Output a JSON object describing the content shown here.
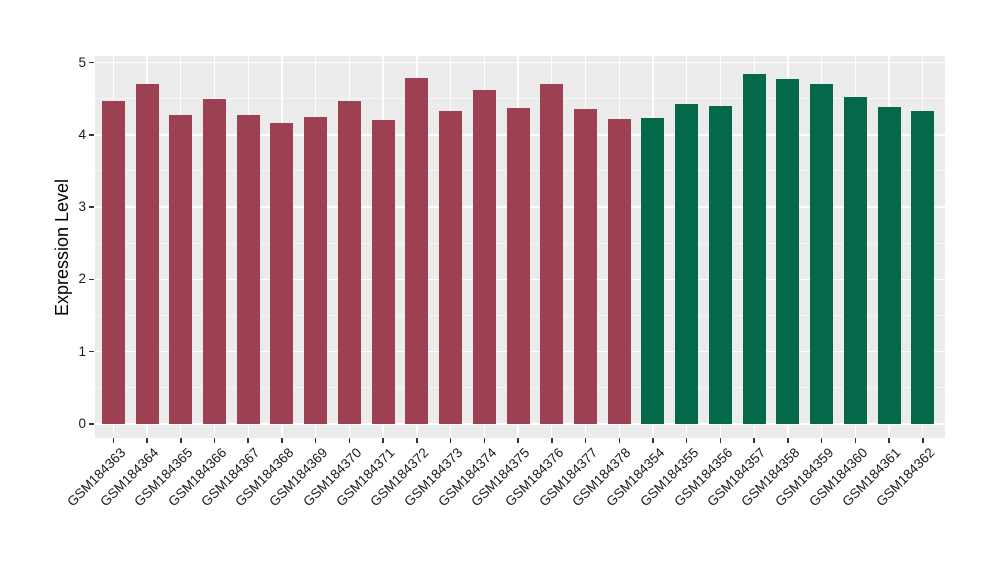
{
  "chart_data": {
    "type": "bar",
    "title": "",
    "xlabel": "",
    "ylabel": "Expression Level",
    "ylim": [
      0,
      5
    ],
    "yticks": [
      0,
      1,
      2,
      3,
      4,
      5
    ],
    "y_minor_ticks": [
      0.5,
      1.5,
      2.5,
      3.5,
      4.5
    ],
    "grid": "on",
    "legend": "none",
    "x_tick_angle": -45,
    "panel_background": "#EBEBEB",
    "grid_color": "#FFFFFF",
    "tick_mark_color": "#333333",
    "axis_text_color": "#1A1A1A",
    "group_colors": [
      "#9D4152",
      "#04684A"
    ],
    "categories": [
      "GSM184363",
      "GSM184364",
      "GSM184365",
      "GSM184366",
      "GSM184367",
      "GSM184368",
      "GSM184369",
      "GSM184370",
      "GSM184371",
      "GSM184372",
      "GSM184373",
      "GSM184374",
      "GSM184375",
      "GSM184376",
      "GSM184377",
      "GSM184378",
      "GSM184354",
      "GSM184355",
      "GSM184356",
      "GSM184357",
      "GSM184358",
      "GSM184359",
      "GSM184360",
      "GSM184361",
      "GSM184362"
    ],
    "values": [
      4.47,
      4.7,
      4.28,
      4.5,
      4.28,
      4.17,
      4.24,
      4.47,
      4.21,
      4.78,
      4.33,
      4.62,
      4.37,
      4.7,
      4.36,
      4.22,
      4.23,
      4.43,
      4.4,
      4.84,
      4.77,
      4.7,
      4.52,
      4.38,
      4.33
    ],
    "bar_groups": [
      0,
      0,
      0,
      0,
      0,
      0,
      0,
      0,
      0,
      0,
      0,
      0,
      0,
      0,
      0,
      0,
      1,
      1,
      1,
      1,
      1,
      1,
      1,
      1,
      1
    ]
  }
}
